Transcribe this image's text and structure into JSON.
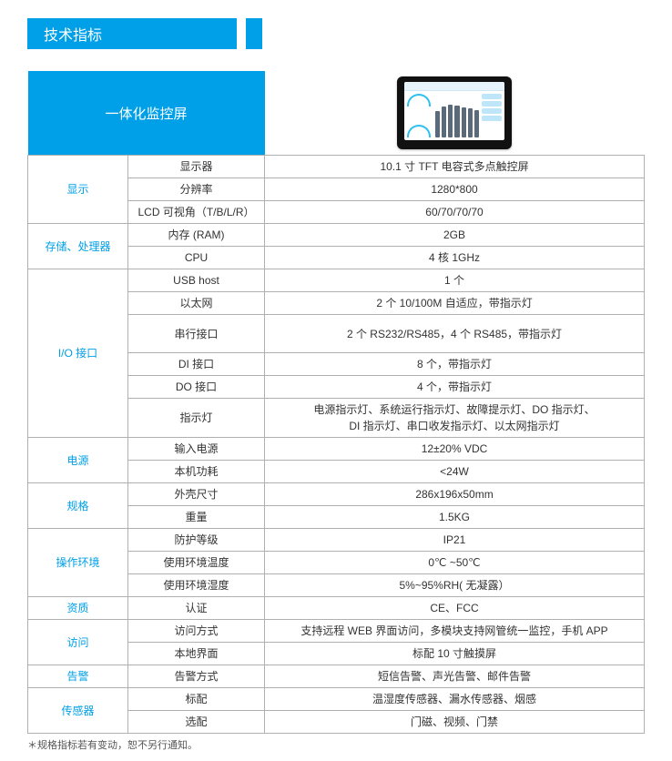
{
  "header": {
    "title": "技术指标"
  },
  "table": {
    "product_title": "一体化监控屏",
    "sections": [
      {
        "category": "显示",
        "rows": [
          {
            "label": "显示器",
            "value": "10.1 寸 TFT 电容式多点触控屏"
          },
          {
            "label": "分辨率",
            "value": "1280*800"
          },
          {
            "label": "LCD 可视角（T/B/L/R）",
            "value": "60/70/70/70"
          }
        ]
      },
      {
        "category": "存储、处理器",
        "rows": [
          {
            "label": "内存 (RAM)",
            "value": "2GB"
          },
          {
            "label": "CPU",
            "value": "4 核 1GHz"
          }
        ]
      },
      {
        "category": "I/O 接口",
        "rows": [
          {
            "label": "USB host",
            "value": "1 个"
          },
          {
            "label": "以太网",
            "value": "2 个 10/100M 自适应，带指示灯"
          },
          {
            "label": "串行接口",
            "value": "2 个 RS232/RS485，4 个 RS485，带指示灯",
            "tall": true
          },
          {
            "label": "DI 接口",
            "value": "8 个，带指示灯"
          },
          {
            "label": "DO 接口",
            "value": "4 个，带指示灯"
          },
          {
            "label": "指示灯",
            "value": "电源指示灯、系统运行指示灯、故障提示灯、DO 指示灯、\nDI 指示灯、串口收发指示灯、以太网指示灯",
            "tall": true
          }
        ]
      },
      {
        "category": "电源",
        "rows": [
          {
            "label": "输入电源",
            "value": "12±20% VDC"
          },
          {
            "label": "本机功耗",
            "value": "<24W"
          }
        ]
      },
      {
        "category": "规格",
        "rows": [
          {
            "label": "外壳尺寸",
            "value": "286x196x50mm"
          },
          {
            "label": "重量",
            "value": "1.5KG"
          }
        ]
      },
      {
        "category": "操作环境",
        "rows": [
          {
            "label": "防护等级",
            "value": "IP21"
          },
          {
            "label": "使用环境温度",
            "value": "0℃ ~50℃"
          },
          {
            "label": "使用环境湿度",
            "value": "5%~95%RH( 无凝露）"
          }
        ]
      },
      {
        "category": "资质",
        "rows": [
          {
            "label": "认证",
            "value": "CE、FCC"
          }
        ]
      },
      {
        "category": "访问",
        "rows": [
          {
            "label": "访问方式",
            "value": "支持远程 WEB 界面访问，多模块支持网管统一监控，手机 APP"
          },
          {
            "label": "本地界面",
            "value": "标配 10 寸触摸屏"
          }
        ]
      },
      {
        "category": "告警",
        "rows": [
          {
            "label": "告警方式",
            "value": "短信告警、声光告警、邮件告警"
          }
        ]
      },
      {
        "category": "传感器",
        "rows": [
          {
            "label": "标配",
            "value": "温湿度传感器、漏水传感器、烟感"
          },
          {
            "label": "选配",
            "value": "门磁、视频、门禁"
          }
        ]
      }
    ]
  },
  "footnote": "＊规格指标若有变动，恕不另行通知。",
  "colors": {
    "accent": "#00a0e9",
    "border": "#b0b0b0",
    "text": "#333333",
    "bg": "#ffffff"
  }
}
